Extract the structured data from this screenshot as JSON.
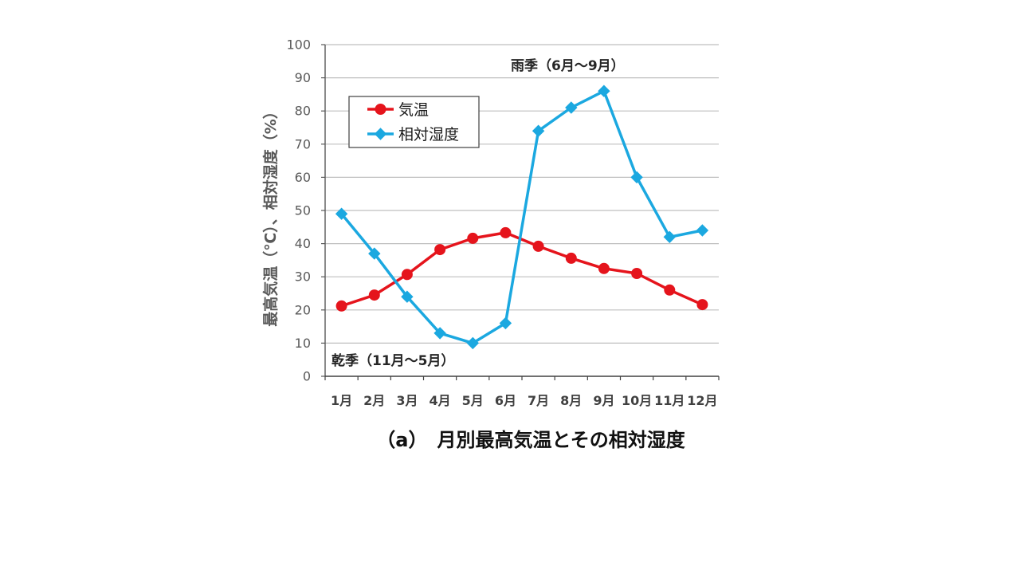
{
  "chart_data": {
    "type": "line",
    "title": "（a）　月別最高気温とその相対湿度",
    "ylabel": "最高気温（℃）、相対湿度（%）",
    "categories": [
      "1月",
      "2月",
      "3月",
      "4月",
      "5月",
      "6月",
      "7月",
      "8月",
      "9月",
      "10月",
      "11月",
      "12月"
    ],
    "ylim": [
      0,
      100
    ],
    "yticks": [
      0,
      10,
      20,
      30,
      40,
      50,
      60,
      70,
      80,
      90,
      100
    ],
    "grid": true,
    "legend": "top-left",
    "series": [
      {
        "name": "気温",
        "values": [
          21.2,
          24.5,
          30.7,
          38.2,
          41.6,
          43.3,
          39.2,
          35.6,
          32.5,
          31.0,
          26.0,
          21.6
        ],
        "color": "#e5141c",
        "marker": "circle"
      },
      {
        "name": "相対湿度",
        "values": [
          49,
          37,
          24,
          13,
          10,
          16,
          74,
          81,
          86,
          60,
          42,
          44
        ],
        "color": "#1ba8e0",
        "marker": "diamond"
      }
    ],
    "annotations": [
      "雨季（6月～9月）",
      "乾季（11月～5月）"
    ]
  }
}
